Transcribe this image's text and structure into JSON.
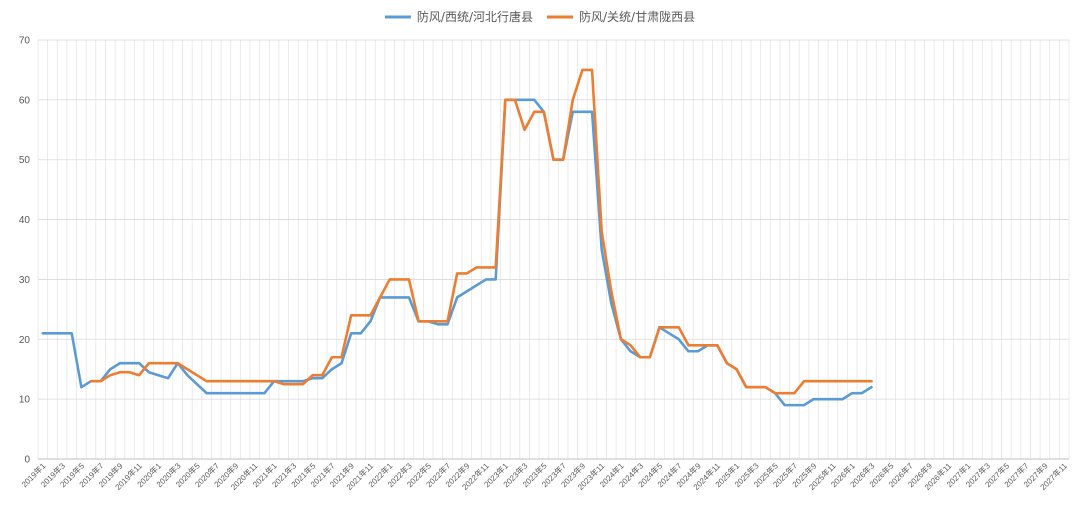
{
  "chart_data": {
    "type": "line",
    "title": "",
    "xlabel": "",
    "ylabel": "",
    "ylim": [
      0,
      70
    ],
    "y_ticks": [
      0,
      10,
      20,
      30,
      40,
      50,
      60,
      70
    ],
    "grid": true,
    "legend_position": "top-center",
    "x_range": [
      "2019-01",
      "2027-11"
    ],
    "x_tick_labels": [
      "2019年1",
      "2019年3",
      "2019年5",
      "2019年7",
      "2019年9",
      "2019年11",
      "2020年1",
      "2020年3",
      "2020年5",
      "2020年7",
      "2020年9",
      "2020年11",
      "2021年1",
      "2021年3",
      "2021年5",
      "2021年7",
      "2021年9",
      "2021年11",
      "2022年1",
      "2022年3",
      "2022年5",
      "2022年7",
      "2022年9",
      "2022年11",
      "2023年1",
      "2023年3",
      "2023年5",
      "2023年7",
      "2023年9",
      "2023年11",
      "2024年1",
      "2024年3",
      "2024年5",
      "2024年7",
      "2024年9",
      "2024年11",
      "2025年1",
      "2025年3",
      "2025年5",
      "2025年7",
      "2025年9",
      "2025年11",
      "2026年1",
      "2026年3",
      "2026年5",
      "2026年7",
      "2026年9",
      "2026年11",
      "2027年1",
      "2027年3",
      "2027年5",
      "2027年7",
      "2027年9",
      "2027年11"
    ],
    "series": [
      {
        "name": "防风/西统/河北行唐县",
        "color": "#5B9BD5",
        "points": [
          [
            "2019-01",
            21
          ],
          [
            "2019-02",
            21
          ],
          [
            "2019-03",
            21
          ],
          [
            "2019-04",
            21
          ],
          [
            "2019-05",
            12
          ],
          [
            "2019-06",
            13
          ],
          [
            "2019-07",
            13
          ],
          [
            "2019-08",
            15
          ],
          [
            "2019-09",
            16
          ],
          [
            "2019-10",
            16
          ],
          [
            "2019-11",
            16
          ],
          [
            "2019-12",
            14.5
          ],
          [
            "2020-01",
            14
          ],
          [
            "2020-02",
            13.5
          ],
          [
            "2020-03",
            16
          ],
          [
            "2020-04",
            14
          ],
          [
            "2020-05",
            12.5
          ],
          [
            "2020-06",
            11
          ],
          [
            "2020-07",
            11
          ],
          [
            "2020-08",
            11
          ],
          [
            "2020-09",
            11
          ],
          [
            "2020-10",
            11
          ],
          [
            "2020-11",
            11
          ],
          [
            "2020-12",
            11
          ],
          [
            "2021-01",
            13
          ],
          [
            "2021-02",
            13
          ],
          [
            "2021-03",
            13
          ],
          [
            "2021-04",
            13
          ],
          [
            "2021-05",
            13.5
          ],
          [
            "2021-06",
            13.5
          ],
          [
            "2021-07",
            15
          ],
          [
            "2021-08",
            16
          ],
          [
            "2021-09",
            21
          ],
          [
            "2021-10",
            21
          ],
          [
            "2021-11",
            23
          ],
          [
            "2021-12",
            27
          ],
          [
            "2022-01",
            27
          ],
          [
            "2022-02",
            27
          ],
          [
            "2022-03",
            27
          ],
          [
            "2022-04",
            23
          ],
          [
            "2022-05",
            23
          ],
          [
            "2022-06",
            22.5
          ],
          [
            "2022-07",
            22.5
          ],
          [
            "2022-08",
            27
          ],
          [
            "2022-09",
            28
          ],
          [
            "2022-10",
            29
          ],
          [
            "2022-11",
            30
          ],
          [
            "2022-12",
            30
          ],
          [
            "2023-01",
            60
          ],
          [
            "2023-02",
            60
          ],
          [
            "2023-03",
            60
          ],
          [
            "2023-04",
            60
          ],
          [
            "2023-05",
            58
          ],
          [
            "2023-06",
            50
          ],
          [
            "2023-07",
            50
          ],
          [
            "2023-08",
            58
          ],
          [
            "2023-09",
            58
          ],
          [
            "2023-10",
            58
          ],
          [
            "2023-11",
            35
          ],
          [
            "2023-12",
            26
          ],
          [
            "2024-01",
            20
          ],
          [
            "2024-02",
            18
          ],
          [
            "2024-03",
            17
          ],
          [
            "2024-04",
            17
          ],
          [
            "2024-05",
            22
          ],
          [
            "2024-06",
            21
          ],
          [
            "2024-07",
            20
          ],
          [
            "2024-08",
            18
          ],
          [
            "2024-09",
            18
          ],
          [
            "2024-10",
            19
          ],
          [
            "2024-11",
            19
          ],
          [
            "2024-12",
            16
          ],
          [
            "2025-01",
            15
          ],
          [
            "2025-02",
            12
          ],
          [
            "2025-03",
            12
          ],
          [
            "2025-04",
            12
          ],
          [
            "2025-05",
            11
          ],
          [
            "2025-06",
            9
          ],
          [
            "2025-07",
            9
          ],
          [
            "2025-08",
            9
          ],
          [
            "2025-09",
            10
          ],
          [
            "2025-10",
            10
          ],
          [
            "2025-11",
            10
          ],
          [
            "2025-12",
            10
          ],
          [
            "2026-01",
            11
          ],
          [
            "2026-02",
            11
          ],
          [
            "2026-03",
            12
          ]
        ]
      },
      {
        "name": "防风/关统/甘肃陇西县",
        "color": "#ED7D31",
        "points": [
          [
            "2019-06",
            13
          ],
          [
            "2019-07",
            13
          ],
          [
            "2019-08",
            14
          ],
          [
            "2019-09",
            14.5
          ],
          [
            "2019-10",
            14.5
          ],
          [
            "2019-11",
            14
          ],
          [
            "2019-12",
            16
          ],
          [
            "2020-01",
            16
          ],
          [
            "2020-02",
            16
          ],
          [
            "2020-03",
            16
          ],
          [
            "2020-04",
            15
          ],
          [
            "2020-05",
            14
          ],
          [
            "2020-06",
            13
          ],
          [
            "2020-07",
            13
          ],
          [
            "2020-08",
            13
          ],
          [
            "2020-09",
            13
          ],
          [
            "2020-10",
            13
          ],
          [
            "2020-11",
            13
          ],
          [
            "2020-12",
            13
          ],
          [
            "2021-01",
            13
          ],
          [
            "2021-02",
            12.5
          ],
          [
            "2021-03",
            12.5
          ],
          [
            "2021-04",
            12.5
          ],
          [
            "2021-05",
            14
          ],
          [
            "2021-06",
            14
          ],
          [
            "2021-07",
            17
          ],
          [
            "2021-08",
            17
          ],
          [
            "2021-09",
            24
          ],
          [
            "2021-10",
            24
          ],
          [
            "2021-11",
            24
          ],
          [
            "2021-12",
            27
          ],
          [
            "2022-01",
            30
          ],
          [
            "2022-02",
            30
          ],
          [
            "2022-03",
            30
          ],
          [
            "2022-04",
            23
          ],
          [
            "2022-05",
            23
          ],
          [
            "2022-06",
            23
          ],
          [
            "2022-07",
            23
          ],
          [
            "2022-08",
            31
          ],
          [
            "2022-09",
            31
          ],
          [
            "2022-10",
            32
          ],
          [
            "2022-11",
            32
          ],
          [
            "2022-12",
            32
          ],
          [
            "2023-01",
            60
          ],
          [
            "2023-02",
            60
          ],
          [
            "2023-03",
            55
          ],
          [
            "2023-04",
            58
          ],
          [
            "2023-05",
            58
          ],
          [
            "2023-06",
            50
          ],
          [
            "2023-07",
            50
          ],
          [
            "2023-08",
            60
          ],
          [
            "2023-09",
            65
          ],
          [
            "2023-10",
            65
          ],
          [
            "2023-11",
            38
          ],
          [
            "2023-12",
            28
          ],
          [
            "2024-01",
            20
          ],
          [
            "2024-02",
            19
          ],
          [
            "2024-03",
            17
          ],
          [
            "2024-04",
            17
          ],
          [
            "2024-05",
            22
          ],
          [
            "2024-06",
            22
          ],
          [
            "2024-07",
            22
          ],
          [
            "2024-08",
            19
          ],
          [
            "2024-09",
            19
          ],
          [
            "2024-10",
            19
          ],
          [
            "2024-11",
            19
          ],
          [
            "2024-12",
            16
          ],
          [
            "2025-01",
            15
          ],
          [
            "2025-02",
            12
          ],
          [
            "2025-03",
            12
          ],
          [
            "2025-04",
            12
          ],
          [
            "2025-05",
            11
          ],
          [
            "2025-06",
            11
          ],
          [
            "2025-07",
            11
          ],
          [
            "2025-08",
            13
          ],
          [
            "2025-09",
            13
          ],
          [
            "2025-10",
            13
          ],
          [
            "2025-11",
            13
          ],
          [
            "2025-12",
            13
          ],
          [
            "2026-01",
            13
          ],
          [
            "2026-02",
            13
          ],
          [
            "2026-03",
            13
          ]
        ]
      }
    ]
  }
}
